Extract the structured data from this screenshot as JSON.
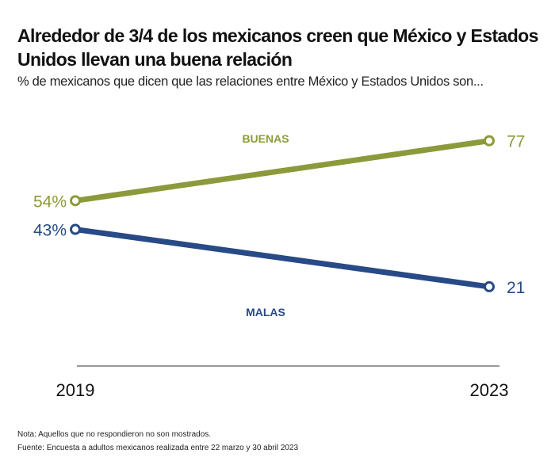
{
  "title": "Alrededor de 3/4 de los mexicanos creen que México y Estados Unidos llevan una buena relación",
  "subtitle": "% de mexicanos que dicen que las relaciones entre México y Estados Unidos son...",
  "notes": {
    "nota": "Nota: Aquellos que no respondieron no son mostrados.",
    "fuente": "Fuente: Encuesta a adultos mexicanos realizada entre 22 marzo y 30 abril 2023"
  },
  "chart_data": {
    "type": "line",
    "title": "Alrededor de 3/4 de los mexicanos creen que México y Estados Unidos llevan una buena relación",
    "subtitle": "% de mexicanos que dicen que las relaciones entre México y Estados Unidos son...",
    "xlabel": "",
    "ylabel": "",
    "x": [
      "2019",
      "2023"
    ],
    "ylim": [
      0,
      100
    ],
    "grid": false,
    "legend": "inline",
    "series": [
      {
        "name": "BUENAS",
        "values": [
          54,
          77
        ],
        "labels": [
          "54%",
          "77"
        ],
        "color": "#8c9a3c"
      },
      {
        "name": "MALAS",
        "values": [
          43,
          21
        ],
        "labels": [
          "43%",
          "21"
        ],
        "color": "#284a86"
      }
    ]
  },
  "colors": {
    "axis": "#999999",
    "tick_text": "#111111"
  }
}
